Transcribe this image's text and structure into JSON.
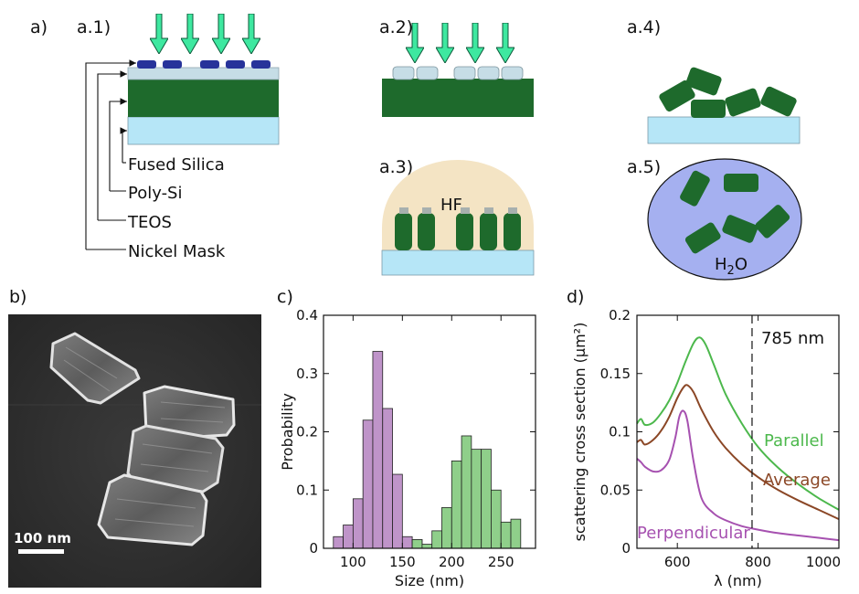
{
  "panel_labels": {
    "a": "a)",
    "a1": "a.1)",
    "a2": "a.2)",
    "a3": "a.3)",
    "a4": "a.4)",
    "a5": "a.5)",
    "b": "b)",
    "c": "c)",
    "d": "d)"
  },
  "schematic": {
    "layers": [
      "Fused Silica",
      "Poly-Si",
      "TEOS",
      "Nickel Mask"
    ],
    "etchant": "HF",
    "solvent_main": "H",
    "solvent_sub": "2",
    "solvent_tail": "O"
  },
  "sem": {
    "scale_bar_label": "100 nm"
  },
  "colors": {
    "arrow": "#3ee8a0",
    "poly_si": "#1e6a2c",
    "fused_silica": "#b6e6f7",
    "teos": "#c6dde6",
    "nickel": "#27339a",
    "hf": "#f4e4c4",
    "water": "#a5b0f0",
    "hist_purple": "#bf94c9",
    "hist_green": "#8fcf8a",
    "parallel": "#4cb84c",
    "average": "#8b4726",
    "perpendicular": "#a651b0"
  },
  "chart_data": [
    {
      "type": "bar",
      "panel": "c",
      "xlabel": "Size (nm)",
      "ylabel": "Probability",
      "xlim": [
        70,
        285
      ],
      "ylim": [
        0,
        0.4
      ],
      "xticks": [
        100,
        150,
        200,
        250
      ],
      "yticks": [
        0,
        0.1,
        0.2,
        0.3,
        0.4
      ],
      "bin_width": 10,
      "series": [
        {
          "bin_starts": [
            80,
            90,
            100,
            110,
            120,
            130,
            140,
            150,
            160
          ],
          "values": [
            0.02,
            0.04,
            0.085,
            0.22,
            0.338,
            0.24,
            0.127,
            0.02,
            0.015
          ]
        },
        {
          "bin_starts": [
            160,
            170,
            180,
            190,
            200,
            210,
            220,
            230,
            240,
            250,
            260
          ],
          "values": [
            0.015,
            0.007,
            0.03,
            0.07,
            0.15,
            0.193,
            0.17,
            0.17,
            0.1,
            0.045,
            0.05
          ]
        }
      ]
    },
    {
      "type": "line",
      "panel": "d",
      "xlabel": "λ (nm)",
      "ylabel": "scattering cross section (μm²)",
      "xlim": [
        500,
        1000
      ],
      "ylim": [
        0,
        0.2
      ],
      "xticks": [
        600,
        800,
        1000
      ],
      "yticks": [
        0,
        0.05,
        0.1,
        0.15,
        0.2
      ],
      "annotation": {
        "text": "785 nm",
        "x": 785
      },
      "series": [
        {
          "name": "Parallel",
          "x": [
            500,
            510,
            520,
            540,
            560,
            580,
            600,
            620,
            640,
            655,
            670,
            690,
            720,
            760,
            800,
            850,
            900,
            950,
            1000
          ],
          "y": [
            0.107,
            0.111,
            0.106,
            0.108,
            0.116,
            0.127,
            0.142,
            0.16,
            0.176,
            0.181,
            0.175,
            0.158,
            0.132,
            0.107,
            0.087,
            0.069,
            0.055,
            0.043,
            0.033
          ]
        },
        {
          "name": "Average",
          "x": [
            500,
            510,
            520,
            540,
            560,
            580,
            600,
            615,
            625,
            640,
            660,
            690,
            720,
            760,
            800,
            850,
            900,
            950,
            1000
          ],
          "y": [
            0.091,
            0.093,
            0.089,
            0.093,
            0.101,
            0.113,
            0.129,
            0.138,
            0.14,
            0.134,
            0.119,
            0.1,
            0.086,
            0.072,
            0.061,
            0.05,
            0.041,
            0.033,
            0.025
          ]
        },
        {
          "name": "Perpendicular",
          "x": [
            500,
            510,
            520,
            540,
            560,
            580,
            595,
            605,
            615,
            625,
            640,
            660,
            690,
            720,
            760,
            800,
            850,
            900,
            950,
            1000
          ],
          "y": [
            0.077,
            0.074,
            0.07,
            0.066,
            0.067,
            0.076,
            0.095,
            0.113,
            0.118,
            0.109,
            0.075,
            0.043,
            0.03,
            0.024,
            0.019,
            0.016,
            0.013,
            0.011,
            0.009,
            0.007
          ]
        }
      ]
    }
  ]
}
